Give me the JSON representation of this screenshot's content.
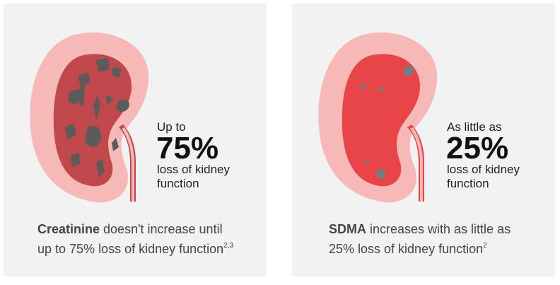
{
  "left": {
    "stat_pre": "Up to",
    "stat_value": "75%",
    "stat_post1": "loss of kidney",
    "stat_post2": "function",
    "caption_bold": "Creatinine",
    "caption_line1": " doesn't increase until",
    "caption_line2": "up to 75% loss of kidney function",
    "caption_sup": "2,3",
    "kidney_icon": "damaged-kidney-icon",
    "colors": {
      "outer": "#f7b8b8",
      "inner": "#c0474b",
      "damage": "#5b5b5b"
    }
  },
  "right": {
    "stat_pre": "As little as",
    "stat_value": "25%",
    "stat_post1": "loss of kidney",
    "stat_post2": "function",
    "caption_bold": "SDMA",
    "caption_line1": " increases with as little as",
    "caption_line2": "25% loss of kidney function",
    "caption_sup": "2",
    "kidney_icon": "mildly-damaged-kidney-icon",
    "colors": {
      "outer": "#f7b8b8",
      "inner": "#e84448",
      "damage": "#7a7a7a"
    }
  }
}
